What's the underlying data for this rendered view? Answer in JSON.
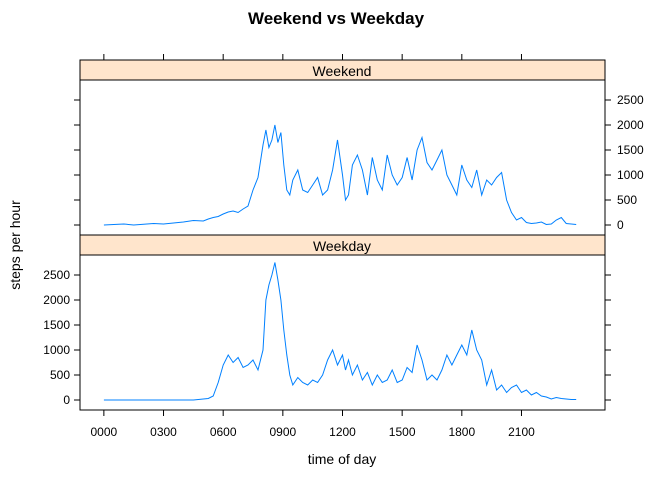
{
  "chart_data": {
    "type": "line",
    "title": "Weekend vs Weekday",
    "xlabel": "time of day",
    "ylabel": "steps per hour",
    "x_ticks": [
      "0000",
      "0300",
      "0600",
      "0900",
      "1200",
      "1500",
      "1800",
      "2100"
    ],
    "y_ticks": [
      "0",
      "500",
      "1000",
      "1500",
      "2000",
      "2500"
    ],
    "xlim": [
      -1.2,
      25.2
    ],
    "ylim": [
      -200,
      2900
    ],
    "line_color": "#0080ff",
    "strip_color": "#ffe5cc",
    "panels": [
      {
        "name": "Weekend",
        "x": [
          0,
          0.5,
          1,
          1.5,
          2,
          2.5,
          3,
          3.5,
          4,
          4.5,
          5,
          5.25,
          5.5,
          5.75,
          6,
          6.25,
          6.5,
          6.75,
          7,
          7.25,
          7.5,
          7.75,
          8,
          8.15,
          8.3,
          8.45,
          8.6,
          8.75,
          8.9,
          9.05,
          9.2,
          9.35,
          9.5,
          9.75,
          10,
          10.25,
          10.5,
          10.75,
          11,
          11.25,
          11.5,
          11.75,
          12,
          12.15,
          12.3,
          12.5,
          12.75,
          13,
          13.25,
          13.5,
          13.75,
          14,
          14.25,
          14.5,
          14.75,
          15,
          15.25,
          15.5,
          15.75,
          16,
          16.25,
          16.5,
          16.75,
          17,
          17.25,
          17.5,
          17.75,
          18,
          18.25,
          18.5,
          18.75,
          19,
          19.25,
          19.5,
          19.75,
          20,
          20.25,
          20.5,
          20.75,
          21,
          21.25,
          21.5,
          21.75,
          22,
          22.25,
          22.5,
          22.75,
          23,
          23.25,
          23.5,
          23.75
        ],
        "y": [
          0,
          10,
          20,
          0,
          15,
          30,
          20,
          40,
          60,
          90,
          80,
          120,
          150,
          170,
          220,
          260,
          280,
          250,
          320,
          380,
          700,
          950,
          1600,
          1900,
          1550,
          1700,
          2000,
          1650,
          1850,
          1200,
          700,
          600,
          900,
          1100,
          700,
          650,
          800,
          950,
          600,
          700,
          1100,
          1700,
          1000,
          500,
          600,
          1200,
          1400,
          1100,
          600,
          1350,
          900,
          700,
          1400,
          1000,
          800,
          950,
          1350,
          900,
          1500,
          1750,
          1250,
          1100,
          1300,
          1500,
          1000,
          800,
          600,
          1200,
          900,
          750,
          1100,
          600,
          900,
          800,
          950,
          1050,
          500,
          250,
          100,
          150,
          50,
          30,
          40,
          60,
          10,
          20,
          100,
          150,
          30,
          20,
          10
        ],
        "label": "Weekend"
      },
      {
        "name": "Weekday",
        "x": [
          0,
          0.5,
          1,
          1.5,
          2,
          2.5,
          3,
          3.5,
          4,
          4.5,
          5,
          5.25,
          5.5,
          5.75,
          6,
          6.25,
          6.5,
          6.75,
          7,
          7.25,
          7.5,
          7.75,
          8,
          8.15,
          8.3,
          8.45,
          8.6,
          8.75,
          8.9,
          9.05,
          9.2,
          9.35,
          9.5,
          9.75,
          10,
          10.25,
          10.5,
          10.75,
          11,
          11.25,
          11.5,
          11.75,
          12,
          12.15,
          12.3,
          12.5,
          12.75,
          13,
          13.25,
          13.5,
          13.75,
          14,
          14.25,
          14.5,
          14.75,
          15,
          15.25,
          15.5,
          15.75,
          16,
          16.25,
          16.5,
          16.75,
          17,
          17.25,
          17.5,
          17.75,
          18,
          18.25,
          18.5,
          18.75,
          19,
          19.25,
          19.5,
          19.75,
          20,
          20.25,
          20.5,
          20.75,
          21,
          21.25,
          21.5,
          21.75,
          22,
          22.25,
          22.5,
          22.75,
          23,
          23.25,
          23.5,
          23.75
        ],
        "y": [
          0,
          0,
          0,
          0,
          0,
          0,
          0,
          0,
          0,
          0,
          20,
          30,
          80,
          350,
          700,
          900,
          750,
          850,
          650,
          700,
          800,
          600,
          1000,
          2000,
          2300,
          2500,
          2750,
          2400,
          2000,
          1400,
          900,
          500,
          300,
          450,
          350,
          300,
          400,
          350,
          500,
          800,
          1000,
          700,
          900,
          600,
          800,
          500,
          700,
          400,
          550,
          300,
          500,
          350,
          400,
          600,
          350,
          400,
          650,
          550,
          1100,
          800,
          400,
          500,
          400,
          600,
          900,
          700,
          900,
          1100,
          900,
          1400,
          1000,
          800,
          300,
          600,
          200,
          300,
          150,
          250,
          300,
          150,
          200,
          100,
          150,
          80,
          60,
          20,
          50,
          30,
          20,
          10,
          10
        ],
        "label": "Weekday"
      }
    ]
  }
}
